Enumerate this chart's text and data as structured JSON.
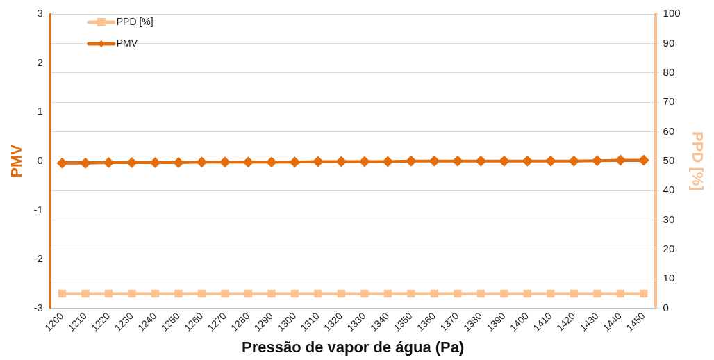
{
  "chart_data": {
    "type": "line",
    "xlabel": "Pressão de vapor de água (Pa)",
    "ylabel": "PMV",
    "y2label": "PPD [%]",
    "categories": [
      "1200",
      "1210",
      "1220",
      "1230",
      "1240",
      "1250",
      "1260",
      "1270",
      "1280",
      "1290",
      "1300",
      "1310",
      "1320",
      "1330",
      "1340",
      "1350",
      "1360",
      "1370",
      "1380",
      "1390",
      "1400",
      "1410",
      "1420",
      "1430",
      "1440",
      "1450"
    ],
    "series": [
      {
        "name": "PPD [%]",
        "color": "#fac090",
        "axis": "y2",
        "marker": "square",
        "values": [
          5,
          5,
          5,
          5,
          5,
          5,
          5,
          5,
          5,
          5,
          5,
          5,
          5,
          5,
          5,
          5,
          5,
          5,
          5,
          5,
          5,
          5,
          5,
          5,
          5,
          5
        ]
      },
      {
        "name": "PMV",
        "color": "#e46c0a",
        "marker": "diamond",
        "values": [
          -0.04,
          -0.04,
          -0.03,
          -0.03,
          -0.03,
          -0.03,
          -0.02,
          -0.02,
          -0.02,
          -0.02,
          -0.02,
          -0.01,
          -0.01,
          -0.01,
          -0.01,
          0,
          0,
          0,
          0,
          0,
          0,
          0,
          0,
          0.01,
          0.02,
          0.02
        ]
      }
    ],
    "ylim": [
      -3,
      3
    ],
    "yticks": [
      -3,
      -2,
      -1,
      0,
      1,
      2,
      3
    ],
    "y2lim": [
      0,
      100
    ],
    "y2ticks": [
      0,
      10,
      20,
      30,
      40,
      50,
      60,
      70,
      80,
      90,
      100
    ],
    "ref_lines": [
      {
        "axis": "y",
        "value": 0,
        "color": "#000000"
      }
    ],
    "grid": "y",
    "legend": "top left",
    "line_style": "solid"
  }
}
